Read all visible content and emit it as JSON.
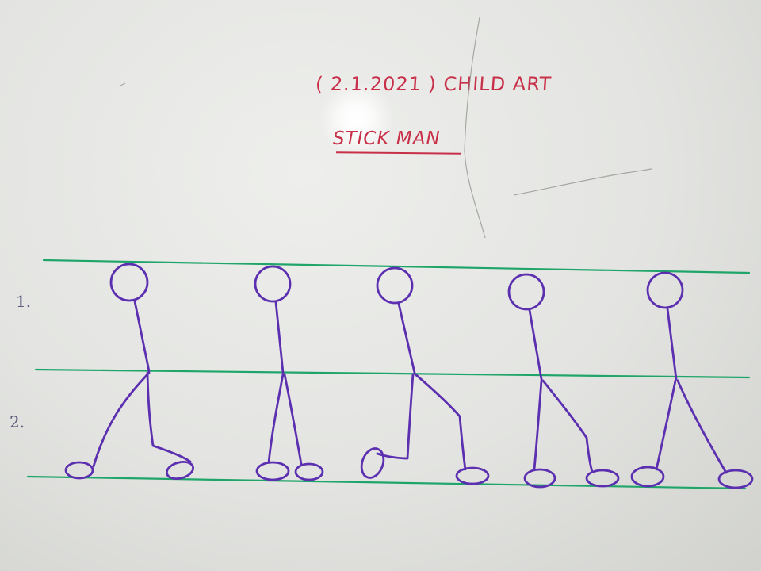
{
  "board": {
    "title": "( 2.1.2021 ) CHILD ART",
    "subtitle": "STICK MAN",
    "row_labels": [
      "1.",
      "2."
    ]
  },
  "colors": {
    "board": "#e3e4e1",
    "heading_ink": "#c8304a",
    "figure_ink": "#5b2fb0",
    "guide_line_ink": "#1fa569",
    "number_ink": "#5a5a7a"
  },
  "figures": [
    {
      "name": "stick-man-1"
    },
    {
      "name": "stick-man-2"
    },
    {
      "name": "stick-man-3"
    },
    {
      "name": "stick-man-4"
    },
    {
      "name": "stick-man-5"
    }
  ]
}
